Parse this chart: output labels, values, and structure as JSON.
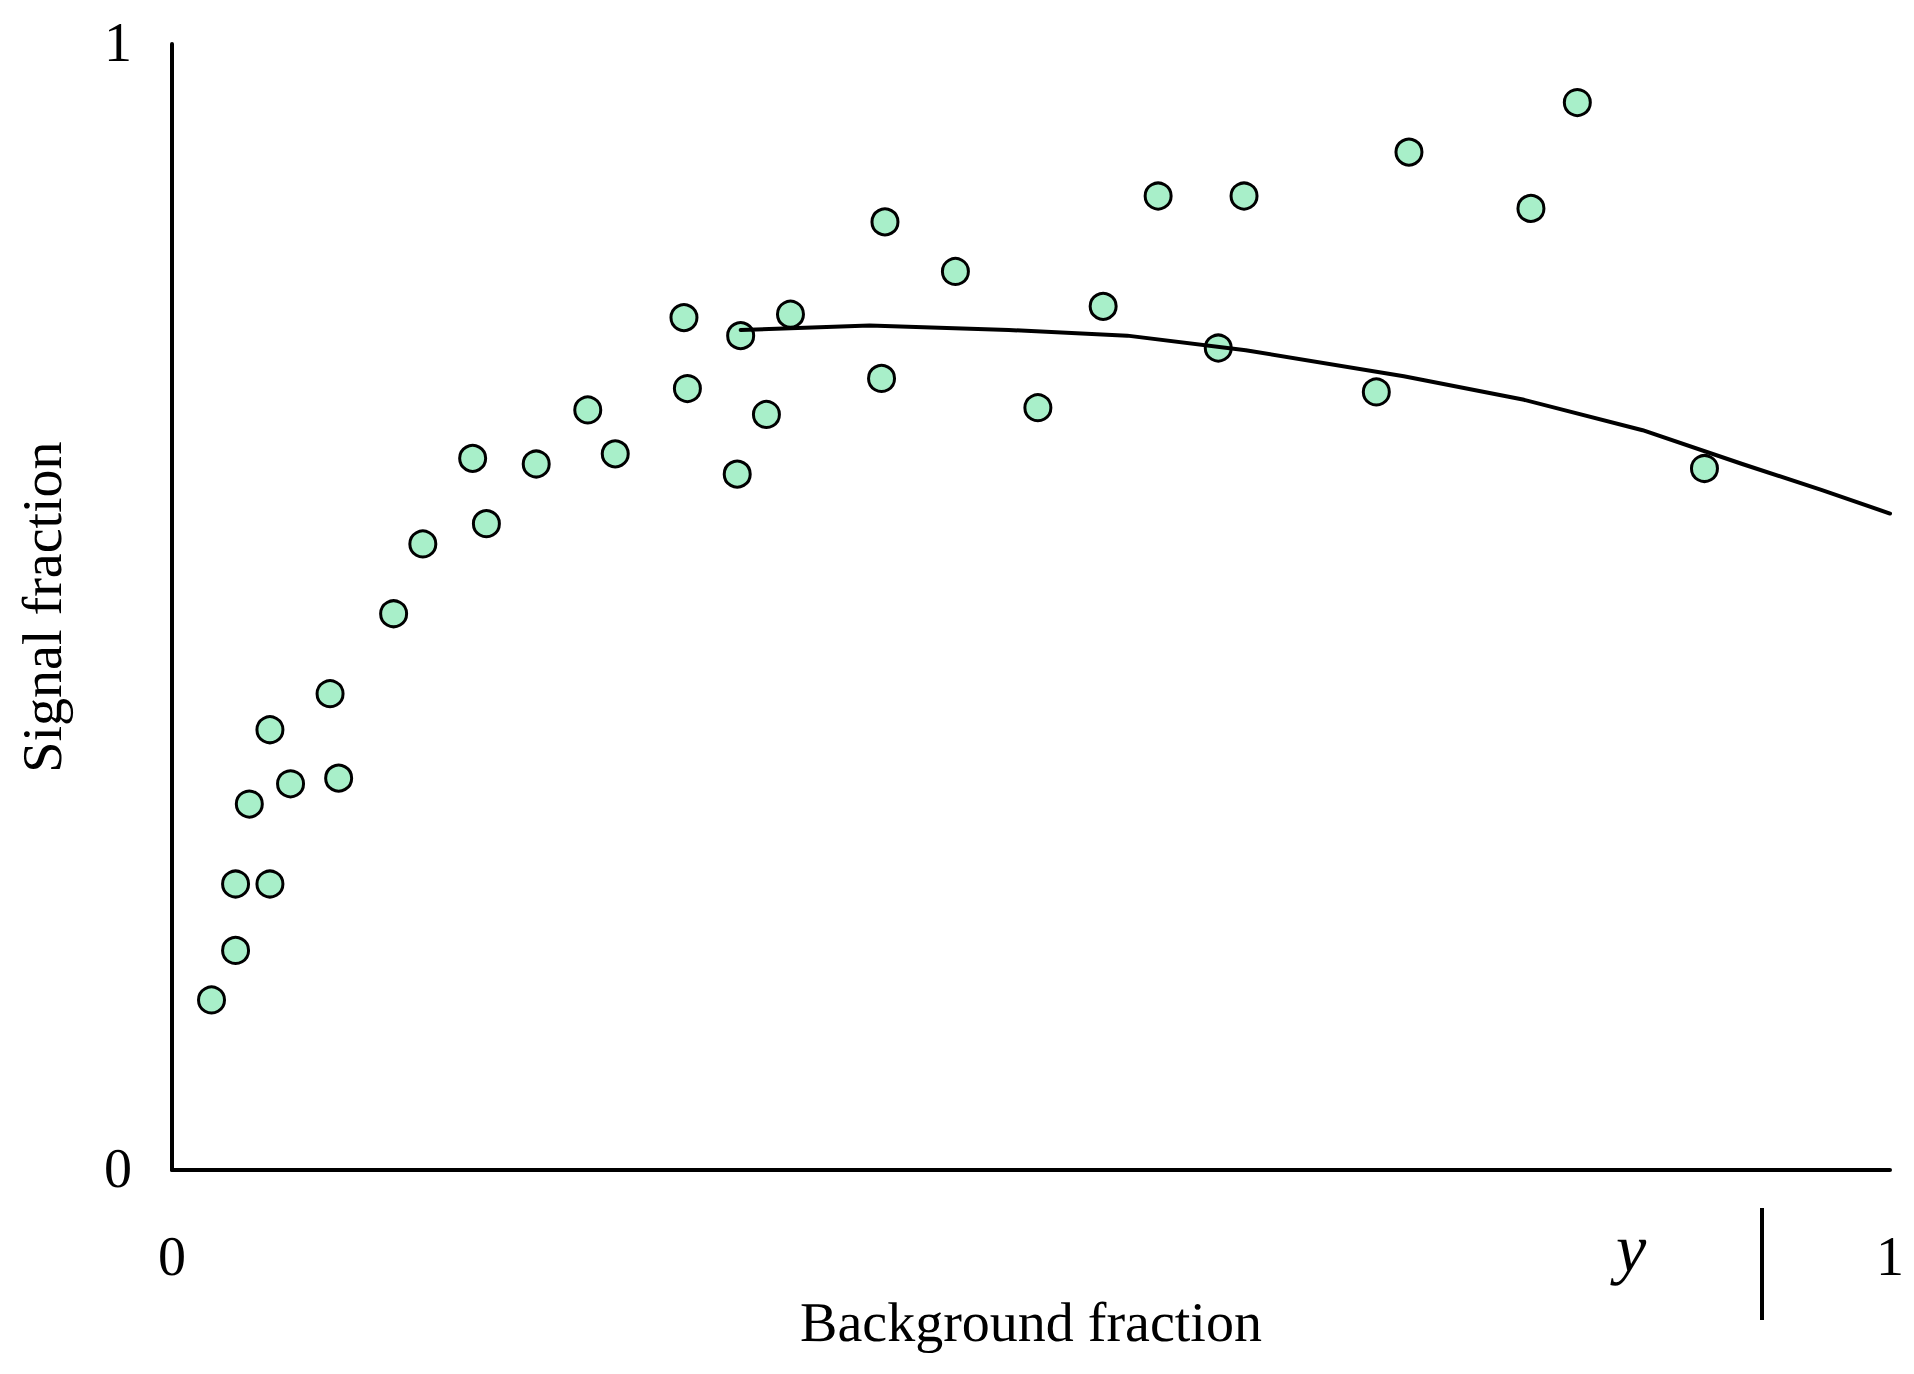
{
  "chart_data": {
    "type": "scatter",
    "xlabel": "Background fraction",
    "ylabel": "Signal fraction",
    "annotations": [
      "y"
    ],
    "xlim": [
      0,
      1
    ],
    "ylim": [
      0,
      1
    ],
    "xticks": [
      0,
      1
    ],
    "yticks": [
      0,
      1
    ],
    "grid": false,
    "marker": "circle",
    "series": [
      {
        "color": "#a8efc9",
        "x": [
          0.023,
          0.037,
          0.037,
          0.057,
          0.045,
          0.057,
          0.069,
          0.092,
          0.097,
          0.129,
          0.146,
          0.175,
          0.183,
          0.212,
          0.242,
          0.258,
          0.298,
          0.3,
          0.329,
          0.331,
          0.346,
          0.36,
          0.413,
          0.415,
          0.456,
          0.504,
          0.542,
          0.574,
          0.609,
          0.624,
          0.701,
          0.72,
          0.791,
          0.818,
          0.892
        ],
        "values": [
          0.151,
          0.195,
          0.254,
          0.254,
          0.325,
          0.391,
          0.343,
          0.423,
          0.348,
          0.494,
          0.556,
          0.632,
          0.574,
          0.627,
          0.675,
          0.636,
          0.757,
          0.694,
          0.618,
          0.741,
          0.671,
          0.76,
          0.703,
          0.842,
          0.798,
          0.677,
          0.767,
          0.865,
          0.73,
          0.865,
          0.691,
          0.904,
          0.854,
          0.948,
          0.623
        ]
      },
      {
        "type": "line",
        "color": "#000000",
        "marker": "none",
        "x": [
          0.331,
          0.406,
          0.487,
          0.556,
          0.625,
          0.717,
          0.787,
          0.856,
          0.914,
          0.96,
          1.0
        ],
        "values": [
          0.746,
          0.75,
          0.746,
          0.741,
          0.728,
          0.705,
          0.684,
          0.657,
          0.627,
          0.604,
          0.583
        ]
      }
    ]
  }
}
